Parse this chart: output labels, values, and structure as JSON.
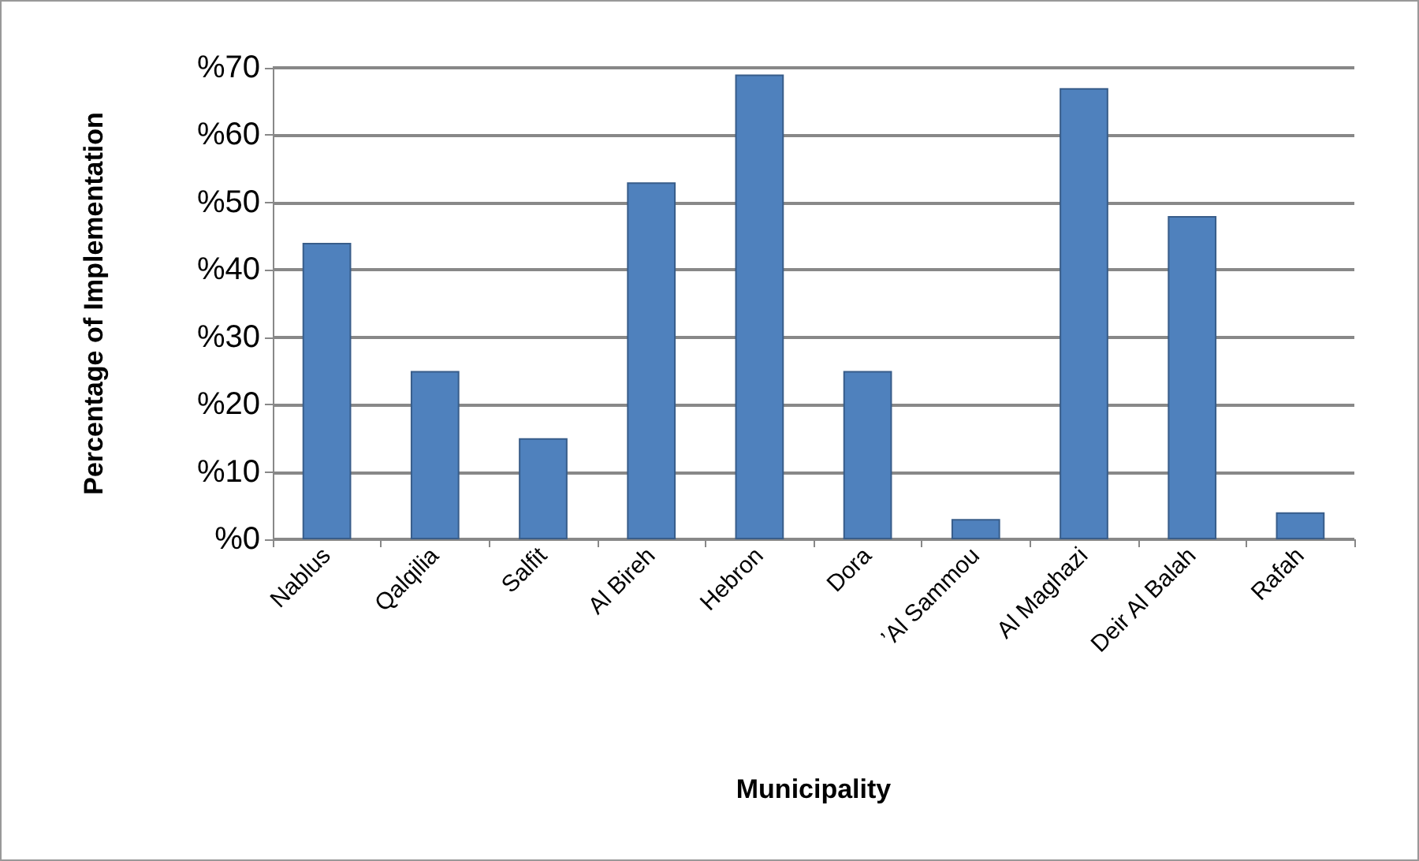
{
  "chart_data": {
    "type": "bar",
    "xlabel": "Municipality",
    "ylabel": "Percentage of Implementation",
    "categories": [
      "Nablus",
      "Qalqilia",
      "Salfit",
      "Al Bireh",
      "Hebron",
      "Dora",
      "’Al Sammou",
      "Al Maghazi",
      "Deir Al Balah",
      "Rafah"
    ],
    "values": [
      44,
      25,
      15,
      53,
      69,
      25,
      3,
      67,
      48,
      4
    ],
    "color": "#4f81bd",
    "ylim": [
      0,
      70
    ],
    "yticks": [
      {
        "value": 0,
        "label": "%0"
      },
      {
        "value": 10,
        "label": "%10"
      },
      {
        "value": 20,
        "label": "%20"
      },
      {
        "value": 30,
        "label": "%30"
      },
      {
        "value": 40,
        "label": "%40"
      },
      {
        "value": 50,
        "label": "%50"
      },
      {
        "value": 60,
        "label": "%60"
      },
      {
        "value": 70,
        "label": "%70"
      }
    ],
    "grid": "y"
  }
}
